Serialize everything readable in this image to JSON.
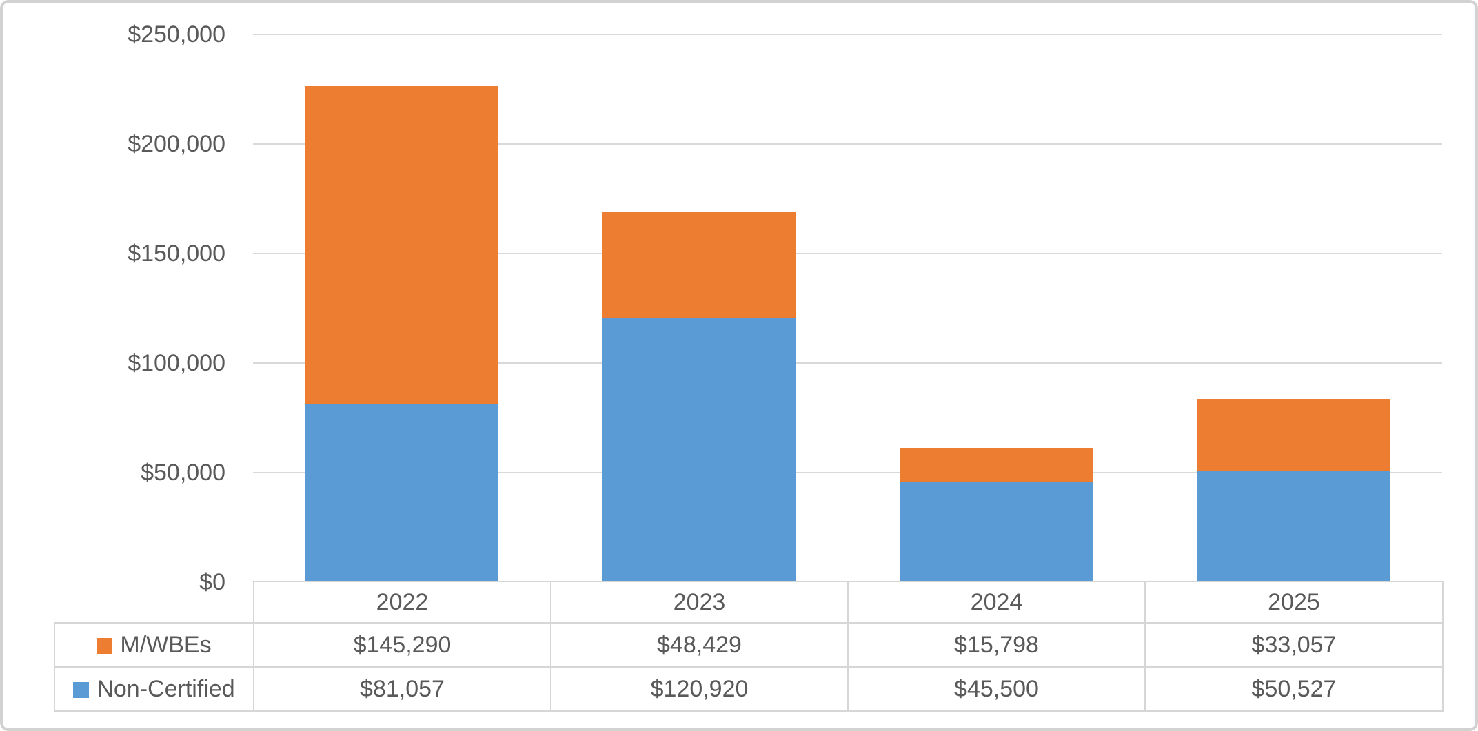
{
  "chart_data": {
    "type": "bar",
    "stacked": true,
    "title": "",
    "xlabel": "",
    "ylabel": "",
    "categories": [
      "2022",
      "2023",
      "2024",
      "2025"
    ],
    "series": [
      {
        "name": "M/WBEs",
        "color": "#ED7D31",
        "stack_position": "top",
        "values": [
          145290,
          48429,
          15798,
          33057
        ],
        "formatted": [
          "$145,290",
          "$48,429",
          "$15,798",
          "$33,057"
        ]
      },
      {
        "name": "Non-Certified",
        "color": "#5B9BD5",
        "stack_position": "bottom",
        "values": [
          81057,
          120920,
          45500,
          50527
        ],
        "formatted": [
          "$81,057",
          "$120,920",
          "$45,500",
          "$50,527"
        ]
      }
    ],
    "totals": [
      226347,
      169349,
      61298,
      83584
    ],
    "ylim": [
      0,
      250000
    ],
    "y_tick_interval": 50000,
    "y_tick_labels": [
      "$250,000",
      "$200,000",
      "$150,000",
      "$100,000",
      "$50,000",
      "$0"
    ],
    "y_tick_values": [
      250000,
      200000,
      150000,
      100000,
      50000,
      0
    ],
    "grid": true,
    "legend_position": "data-table-left",
    "colors": {
      "gridline": "#D9D9D9",
      "axis_text": "#595959",
      "table_border": "#D6D6D6",
      "frame_border": "#D2D2D2",
      "background": "#FFFFFF"
    }
  }
}
